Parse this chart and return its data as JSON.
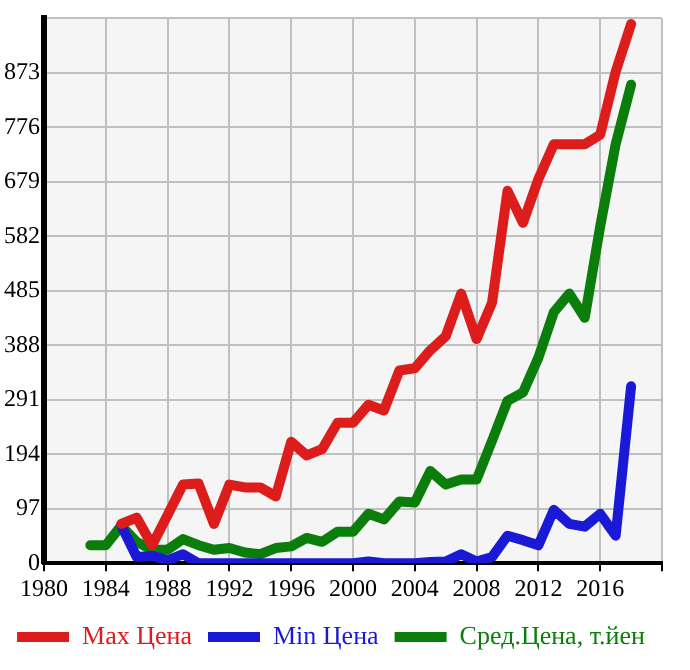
{
  "chart_data": {
    "type": "line",
    "x": [
      1983,
      1984,
      1985,
      1986,
      1987,
      1988,
      1989,
      1990,
      1991,
      1992,
      1993,
      1994,
      1995,
      1996,
      1997,
      1998,
      1999,
      2000,
      2001,
      2002,
      2003,
      2004,
      2005,
      2006,
      2007,
      2008,
      2009,
      2010,
      2011,
      2012,
      2013,
      2014,
      2015,
      2016,
      2017,
      2018
    ],
    "series": [
      {
        "name": "Max Цена",
        "color": "#dd1c1c",
        "values": [
          null,
          null,
          70,
          81,
          32,
          86,
          140,
          142,
          70,
          140,
          135,
          135,
          119,
          216,
          192,
          203,
          250,
          250,
          282,
          272,
          343,
          347,
          379,
          404,
          480,
          399,
          464,
          663,
          606,
          684,
          746,
          746,
          746,
          763,
          875,
          960
        ]
      },
      {
        "name": "Min Цена",
        "color": "#1a1ad6",
        "values": [
          null,
          null,
          67,
          11,
          13,
          5,
          16,
          0,
          0,
          0,
          0,
          0,
          0,
          0,
          0,
          0,
          0,
          0,
          3,
          0,
          0,
          0,
          2,
          3,
          16,
          3,
          11,
          49,
          41,
          32,
          95,
          70,
          65,
          88,
          49,
          315
        ]
      },
      {
        "name": "Сред.Цена, т.йен",
        "color": "#0a7d0a",
        "values": [
          32,
          32,
          67,
          38,
          24,
          24,
          43,
          32,
          24,
          27,
          19,
          16,
          27,
          30,
          45,
          38,
          56,
          56,
          88,
          78,
          110,
          108,
          164,
          140,
          149,
          149,
          218,
          289,
          304,
          366,
          447,
          480,
          437,
          600,
          746,
          852
        ]
      }
    ],
    "xlim": [
      1980,
      2020
    ],
    "xticks": [
      1980,
      1984,
      1988,
      1992,
      1996,
      2000,
      2004,
      2008,
      2012,
      2016,
      {
        "value": 2020,
        "label": null
      }
    ],
    "ylim": [
      0,
      970
    ],
    "yticks": [
      0,
      97,
      194,
      291,
      388,
      485,
      582,
      679,
      776,
      873,
      {
        "value": 970,
        "label": null
      }
    ],
    "grid": true,
    "legend": "bottom",
    "marker": "none",
    "line_style": "solid"
  }
}
